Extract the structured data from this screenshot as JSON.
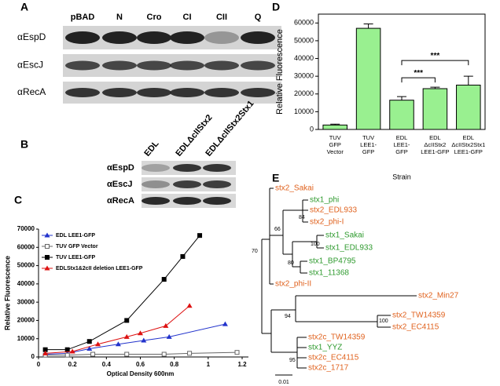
{
  "panels": {
    "a": "A",
    "b": "B",
    "c": "C",
    "d": "D",
    "e": "E"
  },
  "blot_a": {
    "lanes": [
      "pBAD",
      "N",
      "Cro",
      "CI",
      "CII",
      "Q"
    ],
    "rows": [
      "αEspD",
      "αEscJ",
      "αRecA"
    ]
  },
  "blot_b": {
    "lanes": [
      "EDL",
      "EDLΔcIIStx2",
      "EDLΔcIIStx2Stx1"
    ],
    "rows": [
      "αEspD",
      "αEscJ",
      "αRecA"
    ]
  },
  "chart_data": [
    {
      "type": "line",
      "x_label": "Optical Density 600nm",
      "y_label": "Relative Fluorescence",
      "xlim": [
        0,
        1.2
      ],
      "xticks": [
        0,
        0.2,
        0.4,
        0.6,
        0.8,
        1,
        1.2
      ],
      "ylim": [
        0,
        70000
      ],
      "yticks": [
        0,
        10000,
        20000,
        30000,
        40000,
        50000,
        60000,
        70000
      ],
      "legend": "top-left",
      "series": [
        {
          "name": "EDL LEE1-GFP",
          "color": "#2233cc",
          "marker": "triangle",
          "x": [
            0.04,
            0.17,
            0.3,
            0.47,
            0.62,
            0.77,
            1.1
          ],
          "values": [
            1500,
            2000,
            4500,
            7000,
            9000,
            11000,
            18000
          ]
        },
        {
          "name": "TUV GFP Vector",
          "color": "#666666",
          "marker": "square-open",
          "x": [
            0.04,
            0.17,
            0.32,
            0.52,
            0.74,
            0.89,
            1.17
          ],
          "values": [
            1000,
            1000,
            1500,
            1500,
            1500,
            2000,
            2500
          ]
        },
        {
          "name": "TUV LEE1-GFP",
          "color": "#000000",
          "marker": "square",
          "x": [
            0.04,
            0.17,
            0.3,
            0.52,
            0.74,
            0.85,
            0.95
          ],
          "values": [
            4000,
            4000,
            8500,
            20000,
            42500,
            55000,
            66500
          ]
        },
        {
          "name": "EDLStx1&2cII deletion LEE1-GFP",
          "color": "#dd1111",
          "marker": "triangle",
          "x": [
            0.04,
            0.2,
            0.35,
            0.52,
            0.6,
            0.75,
            0.89
          ],
          "values": [
            2000,
            3000,
            7000,
            11000,
            13000,
            17000,
            28000
          ]
        }
      ]
    },
    {
      "type": "bar",
      "x_label": "Strain",
      "y_label": "Relative Fluorescence",
      "categories": [
        [
          "TUV",
          "GFP",
          "Vector"
        ],
        [
          "TUV",
          "LEE1-",
          "GFP"
        ],
        [
          "EDL",
          "LEE1-",
          "GFP"
        ],
        [
          "EDL",
          "ΔcIIStx2",
          "LEE1-GFP"
        ],
        [
          "EDL",
          "ΔcIIStx2Stx1",
          "LEE1-GFP"
        ]
      ],
      "values": [
        2500,
        57000,
        16500,
        23000,
        25000
      ],
      "errors": [
        500,
        2500,
        2000,
        800,
        5000
      ],
      "color": "#99f090",
      "ylim": [
        0,
        65000
      ],
      "yticks": [
        0,
        10000,
        20000,
        30000,
        40000,
        50000,
        60000
      ],
      "annotations": [
        {
          "text": "***",
          "from": 2,
          "to": 3
        },
        {
          "text": "***",
          "from": 2,
          "to": 4
        }
      ]
    }
  ],
  "tree": {
    "leaves": [
      {
        "label": "stx2_Sakai",
        "color": "#e0621e"
      },
      {
        "label": "stx1_phi",
        "color": "#2e9a2e"
      },
      {
        "label": "stx2_EDL933",
        "color": "#e0621e"
      },
      {
        "label": "stx2_phi-I",
        "color": "#e0621e"
      },
      {
        "label": "stx1_Sakai",
        "color": "#2e9a2e"
      },
      {
        "label": "stx1_EDL933",
        "color": "#2e9a2e"
      },
      {
        "label": "stx1_BP4795",
        "color": "#2e9a2e"
      },
      {
        "label": "stx1_11368",
        "color": "#2e9a2e"
      },
      {
        "label": "stx2_phi-II",
        "color": "#e0621e"
      },
      {
        "label": "stx2_Min27",
        "color": "#e0621e"
      },
      {
        "label": "stx2_TW14359",
        "color": "#e0621e"
      },
      {
        "label": "stx2_EC4115",
        "color": "#e0621e"
      },
      {
        "label": "stx2c_TW14359",
        "color": "#e0621e"
      },
      {
        "label": "stx1_YYZ",
        "color": "#2e9a2e"
      },
      {
        "label": "stx2c_EC4115",
        "color": "#e0621e"
      },
      {
        "label": "stx2c_1717",
        "color": "#e0621e"
      }
    ],
    "support": [
      "84",
      "66",
      "100",
      "70",
      "80",
      "94",
      "100",
      "95"
    ],
    "scale": "0.01"
  }
}
